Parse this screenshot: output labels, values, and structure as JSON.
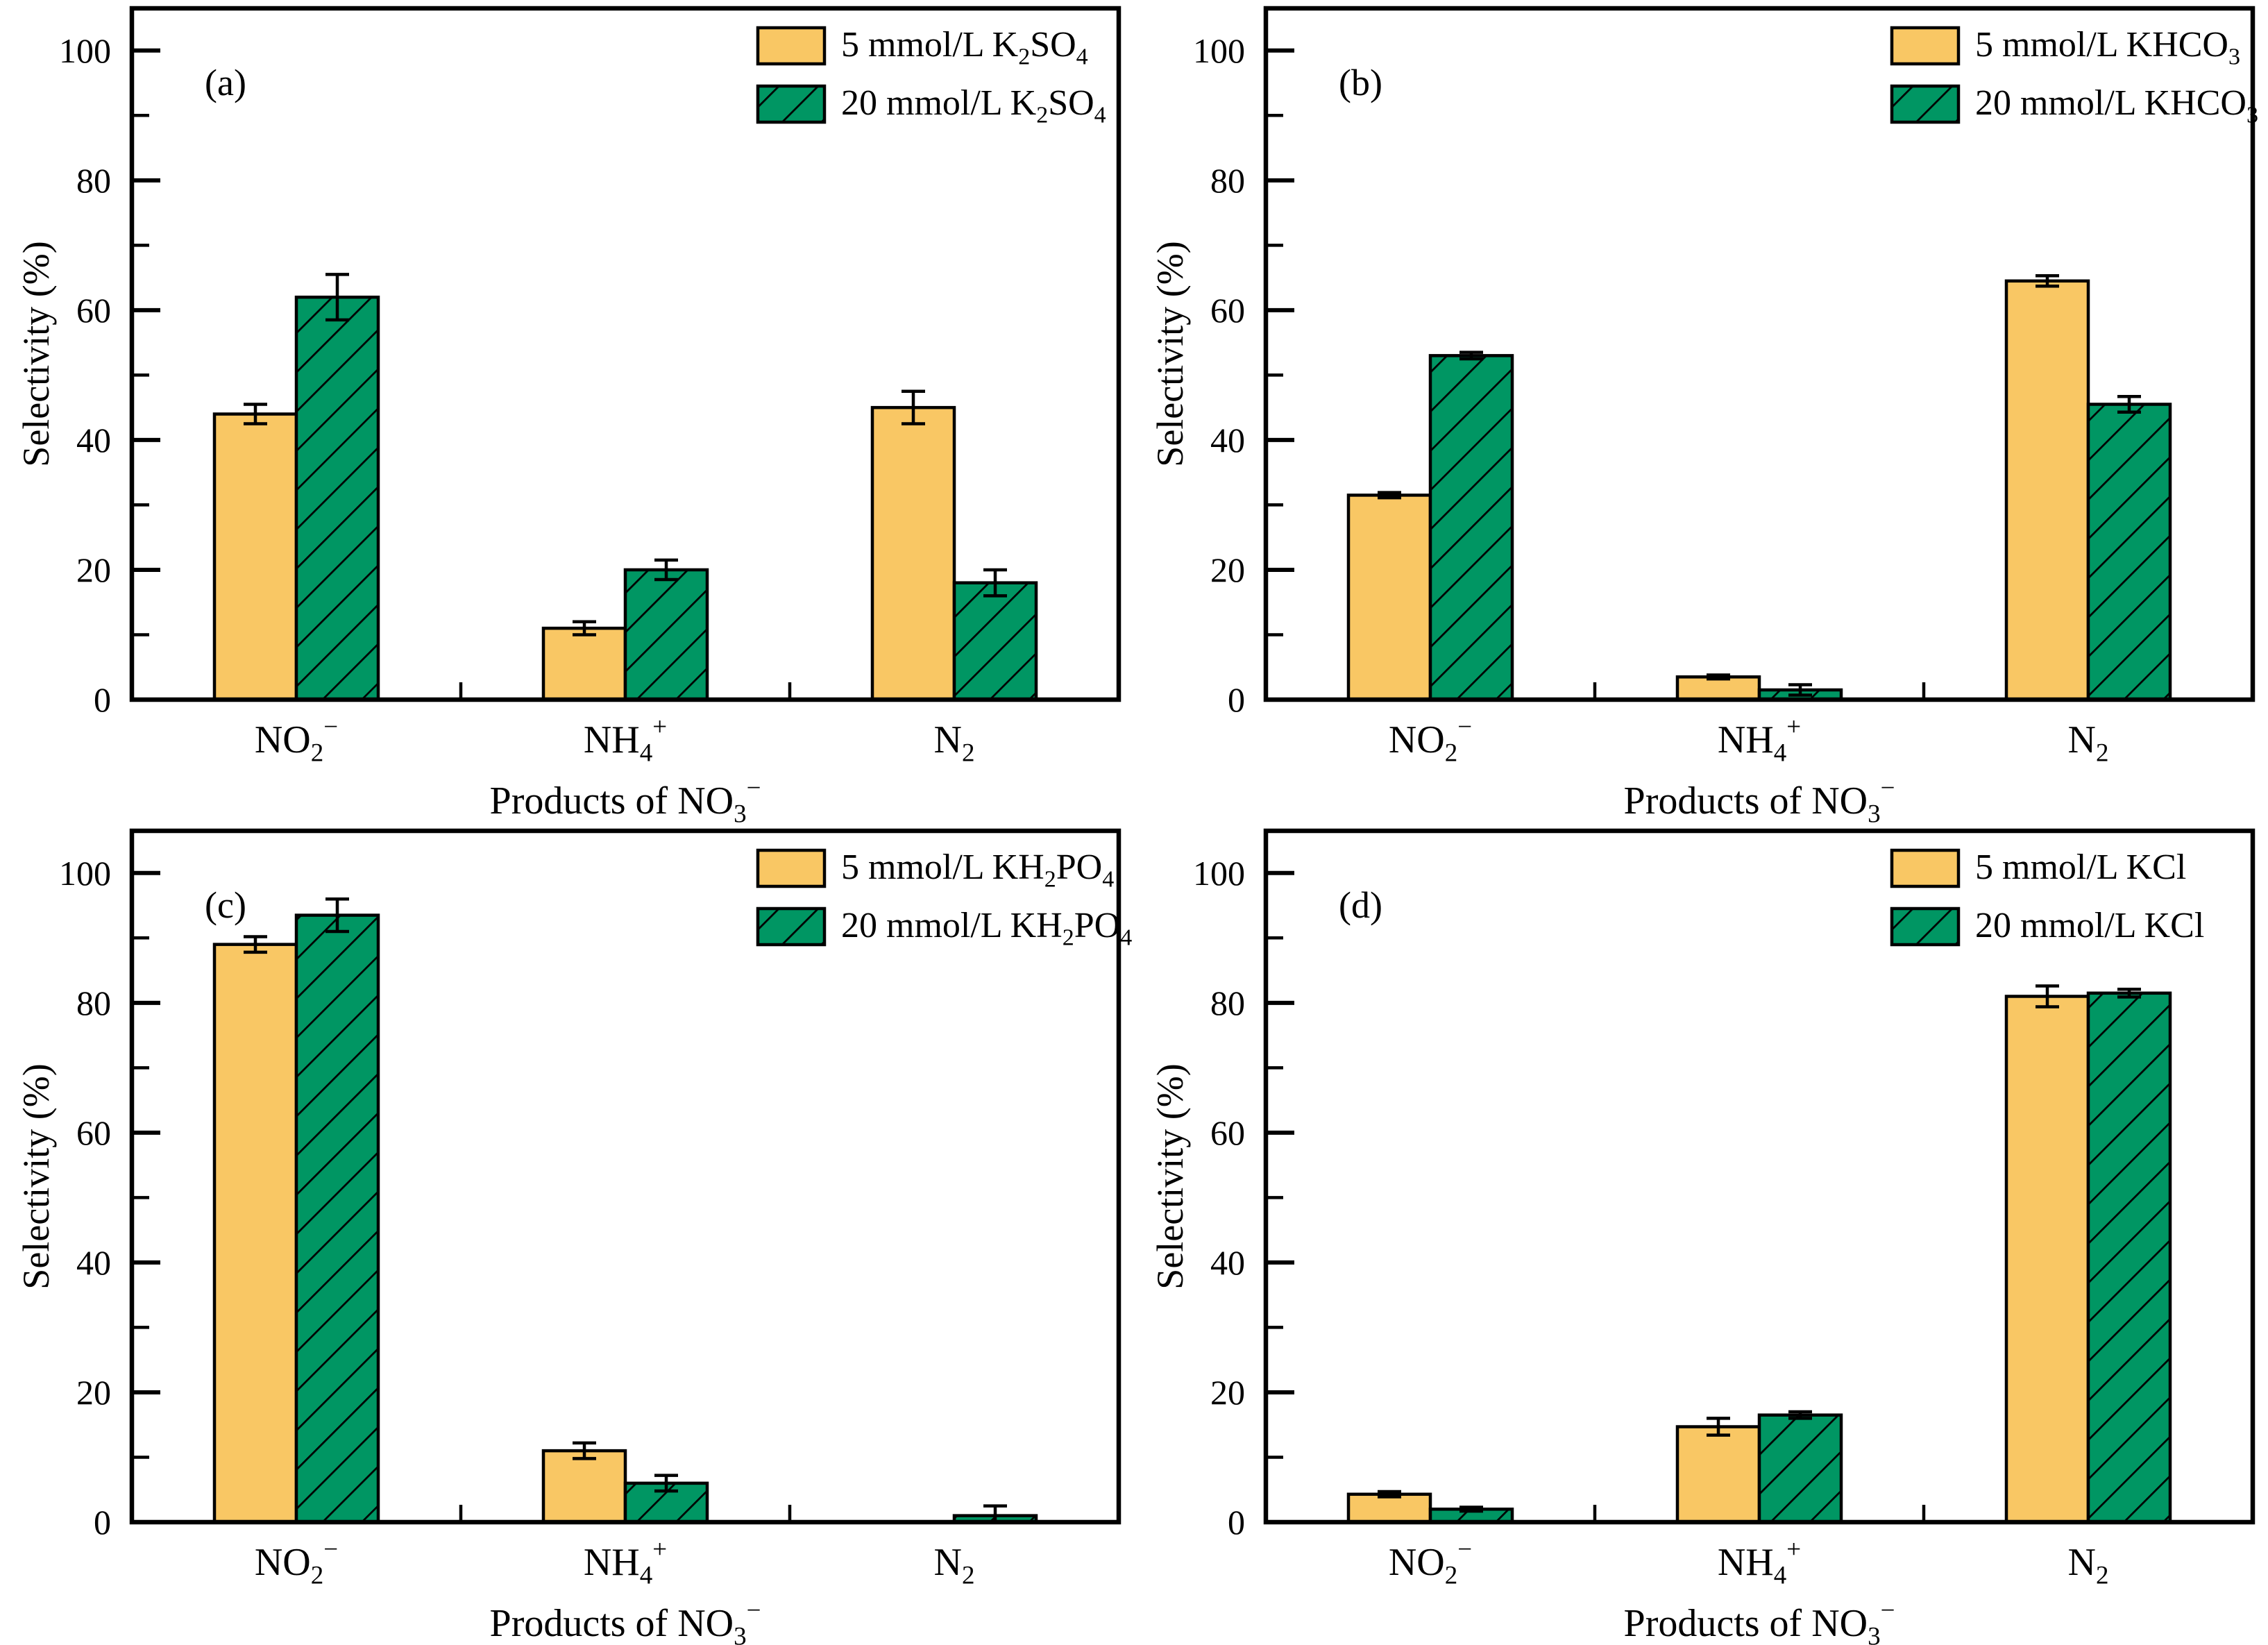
{
  "figure": {
    "ylabel": "Selectivity (%)",
    "xlabel": "Products of NO_3^−",
    "categories": [
      "NO_2^−",
      "NH_4^+",
      "N_2"
    ],
    "yticks": [
      0,
      20,
      40,
      60,
      80,
      100
    ],
    "minor_yticks": [
      10,
      30,
      50,
      70,
      90
    ],
    "colors": {
      "series1_fill": "#F9C764",
      "series2_fill": "#009663",
      "outline": "#000000",
      "background": "#ffffff"
    }
  },
  "chart_data": [
    {
      "type": "bar",
      "panel_label": "(a)",
      "categories": [
        "NO_2^−",
        "NH_4^+",
        "N_2"
      ],
      "series": [
        {
          "name": "5 mmol/L K_2SO_4",
          "style": "solid-orange",
          "values": [
            44,
            11,
            45
          ],
          "errors": [
            1.5,
            1.0,
            2.5
          ]
        },
        {
          "name": "20 mmol/L K_2SO_4",
          "style": "hatched-green",
          "values": [
            62,
            20,
            18
          ],
          "errors": [
            3.5,
            1.5,
            2.0
          ]
        }
      ],
      "xlabel": "Products of NO_3^−",
      "ylabel": "Selectivity (%)",
      "ylim": [
        0,
        106.5
      ],
      "legend_position": "top-right",
      "grid": false
    },
    {
      "type": "bar",
      "panel_label": "(b)",
      "categories": [
        "NO_2^−",
        "NH_4^+",
        "N_2"
      ],
      "series": [
        {
          "name": "5 mmol/L KHCO_3",
          "style": "solid-orange",
          "values": [
            31.5,
            3.5,
            64.5
          ],
          "errors": [
            0.4,
            0.3,
            0.8
          ]
        },
        {
          "name": "20 mmol/L KHCO_3",
          "style": "hatched-green",
          "values": [
            53,
            1.5,
            45.5
          ],
          "errors": [
            0.5,
            0.8,
            1.2
          ]
        }
      ],
      "xlabel": "Products of NO_3^−",
      "ylabel": "Selectivity (%)",
      "ylim": [
        0,
        106.5
      ],
      "legend_position": "top-right",
      "grid": false
    },
    {
      "type": "bar",
      "panel_label": "(c)",
      "categories": [
        "NO_2^−",
        "NH_4^+",
        "N_2"
      ],
      "series": [
        {
          "name": "5 mmol/L KH_2PO_4",
          "style": "solid-orange",
          "values": [
            89,
            11,
            0
          ],
          "errors": [
            1.2,
            1.2,
            0
          ]
        },
        {
          "name": "20 mmol/L KH_2PO_4",
          "style": "hatched-green",
          "values": [
            93.5,
            6,
            1
          ],
          "errors": [
            2.5,
            1.2,
            1.5
          ]
        }
      ],
      "xlabel": "Products of NO_3^−",
      "ylabel": "Selectivity (%)",
      "ylim": [
        0,
        106.5
      ],
      "legend_position": "top-right",
      "grid": false
    },
    {
      "type": "bar",
      "panel_label": "(d)",
      "categories": [
        "NO_2^−",
        "NH_4^+",
        "N_2"
      ],
      "series": [
        {
          "name": "5 mmol/L KCl",
          "style": "solid-orange",
          "values": [
            4.3,
            14.7,
            81
          ],
          "errors": [
            0.4,
            1.3,
            1.6
          ]
        },
        {
          "name": "20 mmol/L KCl",
          "style": "hatched-green",
          "values": [
            2,
            16.5,
            81.5
          ],
          "errors": [
            0.3,
            0.5,
            0.6
          ]
        }
      ],
      "xlabel": "Products of NO_3^−",
      "ylabel": "Selectivity (%)",
      "ylim": [
        0,
        106.5
      ],
      "legend_position": "top-right",
      "grid": false
    }
  ]
}
